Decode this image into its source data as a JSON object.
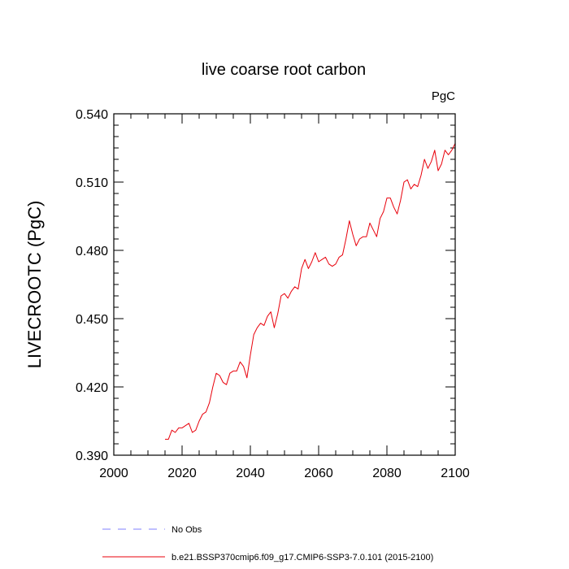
{
  "chart_data": {
    "type": "line",
    "title": "live coarse root carbon",
    "units_label": "PgC",
    "ylabel": "LIVECROOTC  (PgC)",
    "xlabel": "",
    "xlim": [
      2000,
      2100
    ],
    "ylim": [
      0.39,
      0.54
    ],
    "x_ticks": [
      2000,
      2020,
      2040,
      2060,
      2080,
      2100
    ],
    "x_tick_labels": [
      "2000",
      "2020",
      "2040",
      "2060",
      "2080",
      "2100"
    ],
    "y_ticks": [
      0.39,
      0.42,
      0.45,
      0.48,
      0.51,
      0.54
    ],
    "y_tick_labels": [
      "0.390",
      "0.420",
      "0.450",
      "0.480",
      "0.510",
      "0.540"
    ],
    "grid": false,
    "legend_position": "bottom",
    "series": [
      {
        "name": "No Obs",
        "color": "#7f7fff",
        "style": "dashed",
        "x": [],
        "y": []
      },
      {
        "name": "b.e21.BSSP370cmip6.f09_g17.CMIP6-SSP3-7.0.101 (2015-2100)",
        "color": "#e8000b",
        "style": "solid",
        "x": [
          2015,
          2016,
          2017,
          2018,
          2019,
          2020,
          2021,
          2022,
          2023,
          2024,
          2025,
          2026,
          2027,
          2028,
          2029,
          2030,
          2031,
          2032,
          2033,
          2034,
          2035,
          2036,
          2037,
          2038,
          2039,
          2040,
          2041,
          2042,
          2043,
          2044,
          2045,
          2046,
          2047,
          2048,
          2049,
          2050,
          2051,
          2052,
          2053,
          2054,
          2055,
          2056,
          2057,
          2058,
          2059,
          2060,
          2061,
          2062,
          2063,
          2064,
          2065,
          2066,
          2067,
          2068,
          2069,
          2070,
          2071,
          2072,
          2073,
          2074,
          2075,
          2076,
          2077,
          2078,
          2079,
          2080,
          2081,
          2082,
          2083,
          2084,
          2085,
          2086,
          2087,
          2088,
          2089,
          2090,
          2091,
          2092,
          2093,
          2094,
          2095,
          2096,
          2097,
          2098,
          2099,
          2100
        ],
        "y": [
          0.397,
          0.397,
          0.401,
          0.4,
          0.402,
          0.402,
          0.403,
          0.404,
          0.4,
          0.401,
          0.405,
          0.408,
          0.409,
          0.413,
          0.42,
          0.426,
          0.425,
          0.422,
          0.421,
          0.426,
          0.427,
          0.427,
          0.431,
          0.429,
          0.424,
          0.434,
          0.443,
          0.446,
          0.448,
          0.447,
          0.451,
          0.453,
          0.446,
          0.452,
          0.46,
          0.461,
          0.459,
          0.462,
          0.464,
          0.463,
          0.472,
          0.476,
          0.472,
          0.475,
          0.479,
          0.475,
          0.476,
          0.477,
          0.474,
          0.473,
          0.474,
          0.477,
          0.478,
          0.485,
          0.493,
          0.487,
          0.482,
          0.485,
          0.486,
          0.486,
          0.492,
          0.489,
          0.486,
          0.494,
          0.497,
          0.503,
          0.503,
          0.499,
          0.496,
          0.502,
          0.51,
          0.511,
          0.507,
          0.509,
          0.508,
          0.513,
          0.52,
          0.516,
          0.519,
          0.524,
          0.515,
          0.518,
          0.524,
          0.522,
          0.524,
          0.527
        ]
      }
    ]
  }
}
